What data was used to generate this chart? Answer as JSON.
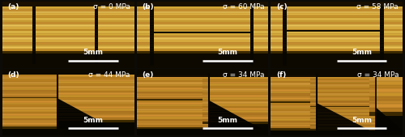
{
  "panels": [
    {
      "label": "(a)",
      "sigma": "σ = 0 MPa",
      "scale": "5mm",
      "row": 0,
      "col": 0
    },
    {
      "label": "(b)",
      "sigma": "σ = 60 MPa",
      "scale": "5mm",
      "row": 0,
      "col": 1
    },
    {
      "label": "(c)",
      "sigma": "σ = 58 MPa",
      "scale": "5mm",
      "row": 0,
      "col": 2
    },
    {
      "label": "(d)",
      "sigma": "σ = 44 MPa",
      "scale": "5mm",
      "row": 1,
      "col": 0
    },
    {
      "label": "(e)",
      "sigma": "σ = 34 MPa",
      "scale": "5mm",
      "row": 1,
      "col": 1
    },
    {
      "label": "(f)",
      "sigma": "σ = 34 MPa",
      "scale": "5mm",
      "row": 1,
      "col": 2
    }
  ],
  "nrows": 2,
  "ncols": 3,
  "bg_color": "#0d0b07",
  "border_color": "#222222",
  "label_color": "white",
  "sigma_color": "white",
  "scale_color": "white",
  "scalebar_color": "white",
  "label_fontsize": 6.5,
  "sigma_fontsize": 6.5,
  "scale_fontsize": 6.5,
  "hgap": 0.006,
  "vgap": 0.01,
  "stripe_colors_top": [
    "#3a2800",
    "#c8922a",
    "#e8c050",
    "#d4a83c",
    "#c89030",
    "#ddb040",
    "#e8c055",
    "#c89030",
    "#d4a838",
    "#e0b848",
    "#c8922a",
    "#ddb040",
    "#e8c055",
    "#c89030",
    "#d4a838",
    "#e0b848",
    "#c8922a",
    "#ddb040",
    "#e8c055",
    "#c89030",
    "#d4a838"
  ],
  "stripe_colors_bot": [
    "#3a2800",
    "#b07820",
    "#d09030",
    "#c08528",
    "#b07820",
    "#c8922a",
    "#d09030",
    "#b88020",
    "#c8902a",
    "#d09838",
    "#b88020",
    "#c8922a",
    "#d09030",
    "#b88020",
    "#c8902a",
    "#d09838",
    "#b88020",
    "#c8922a",
    "#d09030",
    "#b88020",
    "#c8902a"
  ],
  "dark_bg": "#0d0b07",
  "shadow_color": "#1a1200",
  "crack_color": "#080600"
}
